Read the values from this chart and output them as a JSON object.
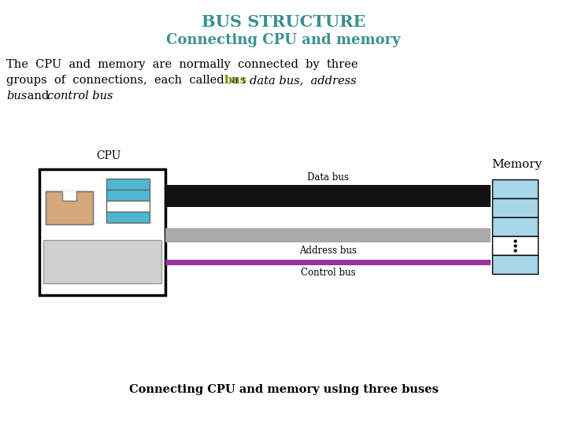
{
  "title1": "BUS STRUCTURE",
  "title2": "Connecting CPU and memory",
  "title1_color": "#3a9090",
  "title2_color": "#3a9090",
  "bus_color": "#808000",
  "caption": "Connecting CPU and memory using three buses",
  "data_bus_label": "Data bus",
  "address_bus_label": "Address bus",
  "control_bus_label": "Control bus",
  "cpu_label": "CPU",
  "memory_label": "Memory",
  "bg_color": "#ffffff",
  "data_bus_color": "#111111",
  "address_bus_color": "#aaaaaa",
  "control_bus_color": "#993399",
  "memory_cell_color": "#a8d8e8",
  "cpu_inner_color": "#4db8d0",
  "cpu_bottom_color": "#d0d0d0",
  "cpu_chip_color": "#d4a87a"
}
